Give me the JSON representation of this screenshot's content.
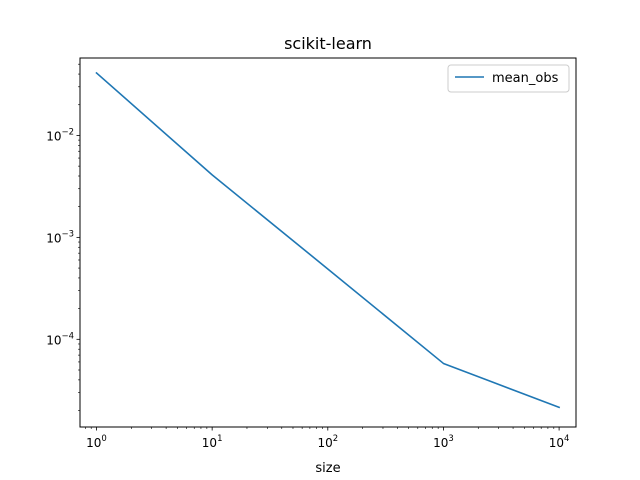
{
  "chart_data": {
    "type": "line",
    "title": "scikit-learn",
    "xlabel": "size",
    "ylabel": "",
    "xscale": "log",
    "yscale": "log",
    "xlim": [
      0.72,
      14000
    ],
    "ylim": [
      1.38e-05,
      0.0575
    ],
    "x_ticks": [
      {
        "value": 1,
        "base": "10",
        "exp": "0"
      },
      {
        "value": 10,
        "base": "10",
        "exp": "1"
      },
      {
        "value": 100,
        "base": "10",
        "exp": "2"
      },
      {
        "value": 1000,
        "base": "10",
        "exp": "3"
      },
      {
        "value": 10000,
        "base": "10",
        "exp": "4"
      }
    ],
    "y_ticks": [
      {
        "value": 0.01,
        "base": "10",
        "exp": "−2"
      },
      {
        "value": 0.001,
        "base": "10",
        "exp": "−3"
      },
      {
        "value": 0.0001,
        "base": "10",
        "exp": "−4"
      }
    ],
    "grid": false,
    "legend_position": "top-right",
    "series": [
      {
        "name": "mean_obs",
        "color": "#1f77b4",
        "x": [
          1,
          10,
          100,
          1000,
          10000
        ],
        "y": [
          0.041,
          0.0041,
          0.00049,
          5.8e-05,
          2.15e-05
        ]
      }
    ]
  }
}
